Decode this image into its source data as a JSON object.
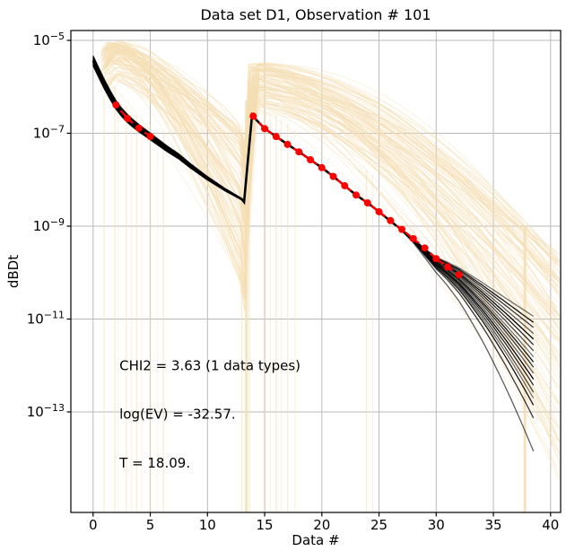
{
  "chart": {
    "title": "Data set D1, Observation # 101",
    "xlabel": "Data #",
    "ylabel": "dBDt"
  },
  "annotations": [
    {
      "text": "CHI2 = 3.63 (1 data types)",
      "x": 2.3,
      "log_y": -12.0
    },
    {
      "text": "log(EV) = -32.57.",
      "x": 2.3,
      "log_y": -13.05
    },
    {
      "text": "T = 18.09.",
      "x": 2.3,
      "log_y": -14.1
    }
  ],
  "chart_data": {
    "type": "line",
    "title": "Data set D1, Observation # 101",
    "xlabel": "Data #",
    "ylabel": "dBDt",
    "grid": true,
    "x_ticks": [
      0,
      5,
      10,
      15,
      20,
      25,
      30,
      35,
      40
    ],
    "y_tick_exponents": [
      -5,
      -7,
      -9,
      -11,
      -13
    ],
    "xlim": [
      -1.95,
      40.95
    ],
    "ylim_log10": [
      -15.17,
      -4.79
    ],
    "observed_black": {
      "seg1_x": [
        0,
        0.5,
        1,
        1.5,
        2,
        2.5,
        3,
        3.5,
        4,
        4.5,
        5,
        5.5,
        6,
        6.5,
        7,
        7.5,
        8,
        8.5,
        9,
        9.5,
        10,
        10.5,
        11,
        11.5,
        12,
        12.5,
        13,
        13.2
      ],
      "seg1_log": [
        -5.44,
        -5.7,
        -5.95,
        -6.18,
        -6.39,
        -6.55,
        -6.68,
        -6.79,
        -6.89,
        -6.98,
        -7.07,
        -7.16,
        -7.25,
        -7.34,
        -7.42,
        -7.5,
        -7.6,
        -7.7,
        -7.79,
        -7.88,
        -7.97,
        -8.05,
        -8.13,
        -8.21,
        -8.28,
        -8.35,
        -8.42,
        -8.48
      ],
      "jump_top": [
        13.9,
        -6.61
      ],
      "seg2_x": [
        13.9,
        14,
        15,
        16,
        17,
        18,
        19,
        20,
        21,
        22,
        23,
        24,
        25,
        26,
        27,
        28,
        29,
        30,
        31,
        32,
        33,
        34,
        35,
        36,
        37,
        38,
        39
      ],
      "seg2_log": [
        -6.61,
        -6.64,
        -6.9,
        -7.07,
        -7.24,
        -7.4,
        -7.57,
        -7.74,
        -7.93,
        -8.13,
        -8.33,
        -8.5,
        -8.69,
        -8.89,
        -9.09,
        -9.3,
        -9.55,
        -9.78,
        -9.95,
        -10.14,
        -10.38,
        -10.63,
        -10.9,
        -11.18,
        -11.47,
        -11.77,
        -12.08
      ],
      "fan_diverge_x": 26,
      "fan_ends_log10": [
        -11.02,
        -11.16,
        -11.28,
        -11.42,
        -11.55,
        -11.68,
        -11.82,
        -11.96,
        -12.08,
        -12.2,
        -12.34,
        -12.48,
        -12.62,
        -12.78,
        -12.92,
        -13.08,
        -13.38,
        -14.15
      ]
    },
    "fit_red": {
      "seg1_x": [
        2,
        3,
        4,
        5
      ],
      "seg1_log": [
        -6.39,
        -6.68,
        -6.89,
        -7.07
      ],
      "seg1_line": [
        [
          1.85,
          -6.33
        ],
        [
          5.15,
          -7.1
        ]
      ],
      "seg2_x": [
        14,
        15,
        16,
        17,
        18,
        19,
        20,
        21,
        22,
        23,
        24,
        25,
        26,
        27,
        28,
        29,
        30,
        31,
        32
      ],
      "seg2_log": [
        -6.63,
        -6.9,
        -7.07,
        -7.24,
        -7.4,
        -7.57,
        -7.74,
        -7.93,
        -8.13,
        -8.33,
        -8.5,
        -8.69,
        -8.88,
        -9.07,
        -9.27,
        -9.47,
        -9.7,
        -9.88,
        -10.05
      ],
      "seg2_line_start": [
        13.88,
        -6.6
      ],
      "seg2_line_end": [
        32.5,
        -10.12
      ]
    },
    "ensemble": {
      "count": 110,
      "seed": 42,
      "x_start_range": [
        0.55,
        1.4
      ],
      "peak1_log_range": [
        -5.85,
        -5.05
      ],
      "end1_log_range": [
        -10.4,
        -6.9
      ],
      "peak2_x_range": [
        13.55,
        14.65
      ],
      "peak2_log_range": [
        -6.45,
        -5.5
      ],
      "end2_log_range": [
        -13.55,
        -9.25
      ],
      "x_end": 41
    },
    "vertical_drops": [
      [
        0.95,
        -6.2,
        1.5,
        0.5
      ],
      [
        1.9,
        -6.0,
        1.5,
        0.55
      ],
      [
        2.2,
        -6.3,
        1.0,
        0.4
      ],
      [
        2.9,
        -6.4,
        1.5,
        0.5
      ],
      [
        3.35,
        -6.5,
        1.0,
        0.45
      ],
      [
        3.8,
        -6.6,
        1.5,
        0.5
      ],
      [
        4.25,
        -6.7,
        1.0,
        0.4
      ],
      [
        5.0,
        -6.8,
        1.5,
        0.5
      ],
      [
        5.65,
        -6.9,
        1.0,
        0.45
      ],
      [
        6.15,
        -7.0,
        1.5,
        0.5
      ],
      [
        13.0,
        -7.4,
        1.5,
        0.5
      ],
      [
        13.4,
        -6.3,
        3.0,
        0.85
      ],
      [
        13.65,
        -6.5,
        1.5,
        0.6
      ],
      [
        15.05,
        -6.5,
        1.5,
        0.6
      ],
      [
        15.5,
        -6.6,
        1.0,
        0.5
      ],
      [
        16.0,
        -6.6,
        1.5,
        0.55
      ],
      [
        16.45,
        -6.7,
        1.0,
        0.5
      ],
      [
        17.0,
        -6.8,
        1.5,
        0.5
      ],
      [
        17.65,
        -6.9,
        1.0,
        0.45
      ],
      [
        23.9,
        -7.8,
        1.5,
        0.55
      ],
      [
        24.45,
        -7.9,
        1.0,
        0.45
      ],
      [
        37.75,
        -9.0,
        3.0,
        0.9
      ]
    ],
    "colors": {
      "ensemble": "#F5DEB3",
      "observed": "#000000",
      "fit": "#FF0000",
      "grid": "#B9B9B9",
      "spine": "#000000",
      "background": "#FFFFFF"
    }
  }
}
